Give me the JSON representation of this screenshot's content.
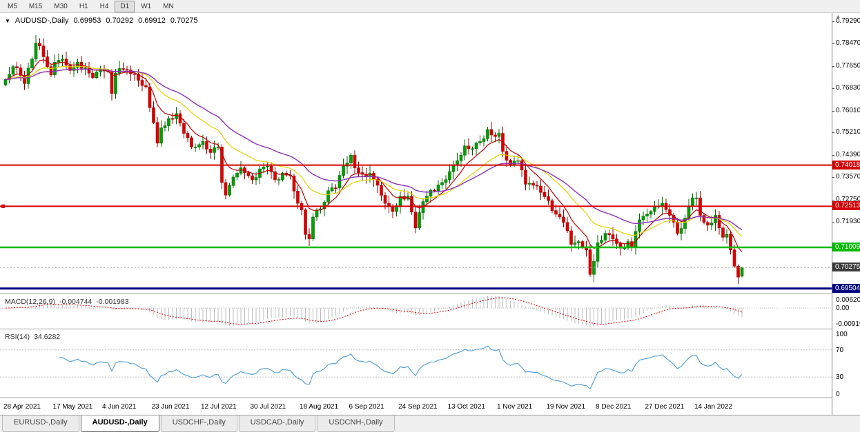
{
  "toolbar": {
    "timeframes": [
      "M5",
      "M15",
      "M30",
      "H1",
      "H4",
      "D1",
      "W1",
      "MN"
    ],
    "active": "D1"
  },
  "header": {
    "dropdown_icon": "▼",
    "symbol": "AUDUSD-,Daily",
    "open": "0.69953",
    "high": "0.70292",
    "low": "0.69912",
    "close": "0.70275"
  },
  "tabs": [
    {
      "label": "EURUSD-,Daily",
      "active": false
    },
    {
      "label": "AUDUSD-,Daily",
      "active": true
    },
    {
      "label": "USDCHF-,Daily",
      "active": false
    },
    {
      "label": "USDCAD-,Daily",
      "active": false
    },
    {
      "label": "USDCNH-,Daily",
      "active": false
    }
  ],
  "chart_data": {
    "type": "candlestick",
    "symbol": "AUDUSD",
    "timeframe": "Daily",
    "bars": 195,
    "style": {
      "up_fill": "#00A000",
      "up_stroke": "#006600",
      "down_fill": "#DD0000",
      "down_stroke": "#990000",
      "bg": "#FFFFFF"
    },
    "y_axis": {
      "top_price": 0.7958,
      "bottom_price": 0.6932,
      "labels": [
        {
          "price": 0.7929,
          "label": "0.79290"
        },
        {
          "price": 0.7847,
          "label": "0.78470"
        },
        {
          "price": 0.7765,
          "label": "0.77650"
        },
        {
          "price": 0.7683,
          "label": "0.76830"
        },
        {
          "price": 0.7601,
          "label": "0.76010"
        },
        {
          "price": 0.7521,
          "label": "0.75210"
        },
        {
          "price": 0.7439,
          "label": "0.74390"
        },
        {
          "price": 0.7357,
          "label": "0.73570"
        },
        {
          "price": 0.7275,
          "label": "0.72750"
        },
        {
          "price": 0.7193,
          "label": "0.71930"
        }
      ]
    },
    "x_labels": [
      {
        "i": 0,
        "label": "28 Apr 2021"
      },
      {
        "i": 13,
        "label": "17 May 2021"
      },
      {
        "i": 26,
        "label": "4 Jun 2021"
      },
      {
        "i": 39,
        "label": "23 Jun 2021"
      },
      {
        "i": 52,
        "label": "12 Jul 2021"
      },
      {
        "i": 65,
        "label": "30 Jul 2021"
      },
      {
        "i": 78,
        "label": "18 Aug 2021"
      },
      {
        "i": 91,
        "label": "6 Sep 2021"
      },
      {
        "i": 104,
        "label": "24 Sep 2021"
      },
      {
        "i": 117,
        "label": "13 Oct 2021"
      },
      {
        "i": 130,
        "label": "1 Nov 2021"
      },
      {
        "i": 143,
        "label": "19 Nov 2021"
      },
      {
        "i": 156,
        "label": "8 Dec 2021"
      },
      {
        "i": 169,
        "label": "27 Dec 2021"
      },
      {
        "i": 182,
        "label": "14 Jan 2022"
      }
    ],
    "hlines": [
      {
        "price": 0.74018,
        "label": "0.74018",
        "color": "#D60000",
        "width": 2,
        "handle": false
      },
      {
        "price": 0.72513,
        "label": "0.72513",
        "color": "#D60000",
        "width": 2,
        "handle": true
      },
      {
        "price": 0.71009,
        "label": "0.71009",
        "color": "#00BB00",
        "width": 2.5,
        "handle": false
      },
      {
        "price": 0.69504,
        "label": "0.69504",
        "color": "#000080",
        "width": 3,
        "handle": false
      }
    ],
    "current_price": {
      "value": 0.70275,
      "label": "0.70275",
      "badge_color": "#3c3c3c",
      "line_color": "#9aa0a6"
    },
    "ma_lines": [
      {
        "period": 8,
        "color": "#C00000",
        "width": 1.2
      },
      {
        "period": 20,
        "color": "#E3D200",
        "width": 1.2
      },
      {
        "period": 34,
        "color": "#8E30B8",
        "width": 1.4
      }
    ],
    "waypoints": [
      [
        0,
        0.7715
      ],
      [
        2,
        0.7762
      ],
      [
        4,
        0.773
      ],
      [
        5,
        0.77
      ],
      [
        7,
        0.779
      ],
      [
        8,
        0.7848
      ],
      [
        9,
        0.7838
      ],
      [
        11,
        0.7762
      ],
      [
        12,
        0.7732
      ],
      [
        13,
        0.7778
      ],
      [
        15,
        0.779
      ],
      [
        17,
        0.7748
      ],
      [
        19,
        0.7778
      ],
      [
        21,
        0.7758
      ],
      [
        23,
        0.7722
      ],
      [
        25,
        0.7752
      ],
      [
        27,
        0.7744
      ],
      [
        28,
        0.7664
      ],
      [
        29,
        0.7738
      ],
      [
        31,
        0.7752
      ],
      [
        33,
        0.7736
      ],
      [
        35,
        0.7712
      ],
      [
        37,
        0.7688
      ],
      [
        38,
        0.7612
      ],
      [
        39,
        0.7558
      ],
      [
        40,
        0.7482
      ],
      [
        41,
        0.7538
      ],
      [
        43,
        0.7572
      ],
      [
        45,
        0.759
      ],
      [
        47,
        0.7518
      ],
      [
        49,
        0.7468
      ],
      [
        52,
        0.7488
      ],
      [
        54,
        0.7448
      ],
      [
        56,
        0.7468
      ],
      [
        57,
        0.7338
      ],
      [
        58,
        0.7292
      ],
      [
        60,
        0.7358
      ],
      [
        62,
        0.7392
      ],
      [
        65,
        0.7348
      ],
      [
        67,
        0.7388
      ],
      [
        69,
        0.7398
      ],
      [
        71,
        0.7348
      ],
      [
        73,
        0.7372
      ],
      [
        75,
        0.7362
      ],
      [
        77,
        0.7262
      ],
      [
        78,
        0.7238
      ],
      [
        79,
        0.7148
      ],
      [
        80,
        0.7132
      ],
      [
        81,
        0.7212
      ],
      [
        83,
        0.7242
      ],
      [
        85,
        0.7308
      ],
      [
        87,
        0.7318
      ],
      [
        89,
        0.7398
      ],
      [
        91,
        0.7438
      ],
      [
        92,
        0.7392
      ],
      [
        94,
        0.7368
      ],
      [
        96,
        0.7372
      ],
      [
        98,
        0.7328
      ],
      [
        100,
        0.7262
      ],
      [
        102,
        0.7232
      ],
      [
        104,
        0.7288
      ],
      [
        106,
        0.7288
      ],
      [
        108,
        0.7172
      ],
      [
        109,
        0.7228
      ],
      [
        111,
        0.7288
      ],
      [
        113,
        0.7308
      ],
      [
        115,
        0.7338
      ],
      [
        117,
        0.7378
      ],
      [
        119,
        0.7418
      ],
      [
        121,
        0.7472
      ],
      [
        123,
        0.7462
      ],
      [
        125,
        0.7488
      ],
      [
        127,
        0.7532
      ],
      [
        128,
        0.7512
      ],
      [
        130,
        0.7518
      ],
      [
        131,
        0.7452
      ],
      [
        133,
        0.7402
      ],
      [
        135,
        0.7418
      ],
      [
        137,
        0.7332
      ],
      [
        139,
        0.7328
      ],
      [
        141,
        0.7302
      ],
      [
        143,
        0.7272
      ],
      [
        145,
        0.7222
      ],
      [
        147,
        0.7192
      ],
      [
        149,
        0.7112
      ],
      [
        151,
        0.7122
      ],
      [
        153,
        0.7092
      ],
      [
        154,
        0.7002
      ],
      [
        156,
        0.7118
      ],
      [
        158,
        0.7152
      ],
      [
        160,
        0.7132
      ],
      [
        162,
        0.7098
      ],
      [
        164,
        0.7122
      ],
      [
        165,
        0.7102
      ],
      [
        167,
        0.7202
      ],
      [
        169,
        0.7222
      ],
      [
        171,
        0.7248
      ],
      [
        173,
        0.7262
      ],
      [
        175,
        0.7218
      ],
      [
        177,
        0.7152
      ],
      [
        179,
        0.7208
      ],
      [
        181,
        0.7282
      ],
      [
        182,
        0.7282
      ],
      [
        183,
        0.7218
      ],
      [
        185,
        0.7182
      ],
      [
        187,
        0.7218
      ],
      [
        188,
        0.7172
      ],
      [
        189,
        0.7138
      ],
      [
        190,
        0.7148
      ],
      [
        191,
        0.7092
      ],
      [
        192,
        0.7032
      ],
      [
        193,
        0.6992
      ],
      [
        194,
        0.70275
      ]
    ],
    "overrides": {
      "8": {
        "high": 0.7878
      },
      "80": {
        "low": 0.7106
      },
      "154": {
        "low": 0.6993
      },
      "193": {
        "low": 0.6967
      },
      "194": {
        "open": 0.69953,
        "high": 0.70292,
        "low": 0.69912,
        "close": 0.70275
      }
    },
    "indicators": {
      "macd": {
        "label": "MACD(12,26,9)",
        "value_main": "-0.004744",
        "value_signal": "-0.001983",
        "fast": 12,
        "slow": 26,
        "signal": 9,
        "scale_labels": [
          "0.0062011",
          "0.00",
          "-0.0091975"
        ],
        "range": [
          0.0062011,
          -0.0091975
        ],
        "hist_color": "#BDBDBD",
        "signal_color": "#E00000"
      },
      "rsi": {
        "label": "RSI(14)",
        "value": "34.6282",
        "period": 14,
        "scale_labels": [
          "100",
          "70",
          "30",
          "0"
        ],
        "levels": [
          70,
          30
        ],
        "line_color": "#4A9CD6",
        "level_color": "#C0C0C0"
      }
    }
  }
}
